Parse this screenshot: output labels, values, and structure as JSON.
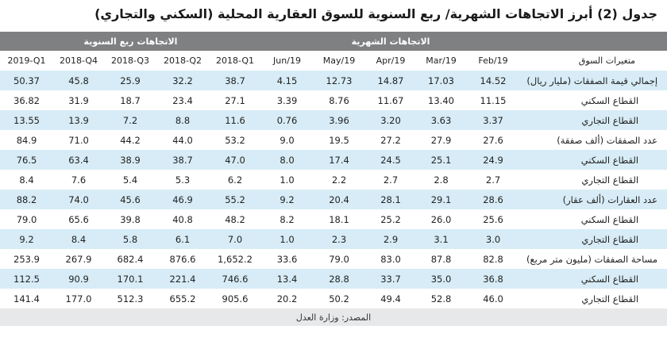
{
  "title": "جدول (2) أبرز الاتجاهات الشهرية/ ربع السنوية للسوق العقارية المحلية (السكني والتجاري)",
  "group_headers": {
    "quarterly": "الاتجاهات ربع السنوية",
    "monthly": "الاتجاهات الشهرية"
  },
  "columns": [
    "2019-Q1",
    "2018-Q4",
    "2018-Q3",
    "2018-Q2",
    "2018-Q1",
    "Jun/19",
    "May/19",
    "Apr/19",
    "Mar/19",
    "Feb/19"
  ],
  "label_header": "متغيرات السوق",
  "rows": [
    {
      "label": "إجمالي قيمة الصفقات (مليار ريال)",
      "sub": false,
      "values": [
        "50.37",
        "45.8",
        "25.9",
        "32.2",
        "38.7",
        "4.15",
        "12.73",
        "14.87",
        "17.03",
        "14.52"
      ]
    },
    {
      "label": "القطاع السكني",
      "sub": true,
      "values": [
        "36.82",
        "31.9",
        "18.7",
        "23.4",
        "27.1",
        "3.39",
        "8.76",
        "11.67",
        "13.40",
        "11.15"
      ]
    },
    {
      "label": "القطاع التجاري",
      "sub": true,
      "values": [
        "13.55",
        "13.9",
        "7.2",
        "8.8",
        "11.6",
        "0.76",
        "3.96",
        "3.20",
        "3.63",
        "3.37"
      ]
    },
    {
      "label": "عدد الصفقات (ألف صفقة)",
      "sub": false,
      "values": [
        "84.9",
        "71.0",
        "44.2",
        "44.0",
        "53.2",
        "9.0",
        "19.5",
        "27.2",
        "27.9",
        "27.6"
      ]
    },
    {
      "label": "القطاع السكني",
      "sub": true,
      "values": [
        "76.5",
        "63.4",
        "38.9",
        "38.7",
        "47.0",
        "8.0",
        "17.4",
        "24.5",
        "25.1",
        "24.9"
      ]
    },
    {
      "label": "القطاع التجاري",
      "sub": true,
      "values": [
        "8.4",
        "7.6",
        "5.4",
        "5.3",
        "6.2",
        "1.0",
        "2.2",
        "2.7",
        "2.8",
        "2.7"
      ]
    },
    {
      "label": "عدد العقارات (ألف عقار)",
      "sub": false,
      "values": [
        "88.2",
        "74.0",
        "45.6",
        "46.9",
        "55.2",
        "9.2",
        "20.4",
        "28.1",
        "29.1",
        "28.6"
      ]
    },
    {
      "label": "القطاع السكني",
      "sub": true,
      "values": [
        "79.0",
        "65.6",
        "39.8",
        "40.8",
        "48.2",
        "8.2",
        "18.1",
        "25.2",
        "26.0",
        "25.6"
      ]
    },
    {
      "label": "القطاع التجاري",
      "sub": true,
      "values": [
        "9.2",
        "8.4",
        "5.8",
        "6.1",
        "7.0",
        "1.0",
        "2.3",
        "2.9",
        "3.1",
        "3.0"
      ]
    },
    {
      "label": "مساحة الصفقات (مليون متر مربع)",
      "sub": false,
      "values": [
        "253.9",
        "267.9",
        "682.4",
        "876.6",
        "1,652.2",
        "33.6",
        "79.0",
        "83.0",
        "87.8",
        "82.8"
      ]
    },
    {
      "label": "القطاع السكني",
      "sub": true,
      "values": [
        "112.5",
        "90.9",
        "170.1",
        "221.4",
        "746.6",
        "13.4",
        "28.8",
        "33.7",
        "35.0",
        "36.8"
      ]
    },
    {
      "label": "القطاع التجاري",
      "sub": true,
      "values": [
        "141.4",
        "177.0",
        "512.3",
        "655.2",
        "905.6",
        "20.2",
        "50.2",
        "49.4",
        "52.8",
        "46.0"
      ]
    }
  ],
  "source": "المصدر: وزارة العدل"
}
